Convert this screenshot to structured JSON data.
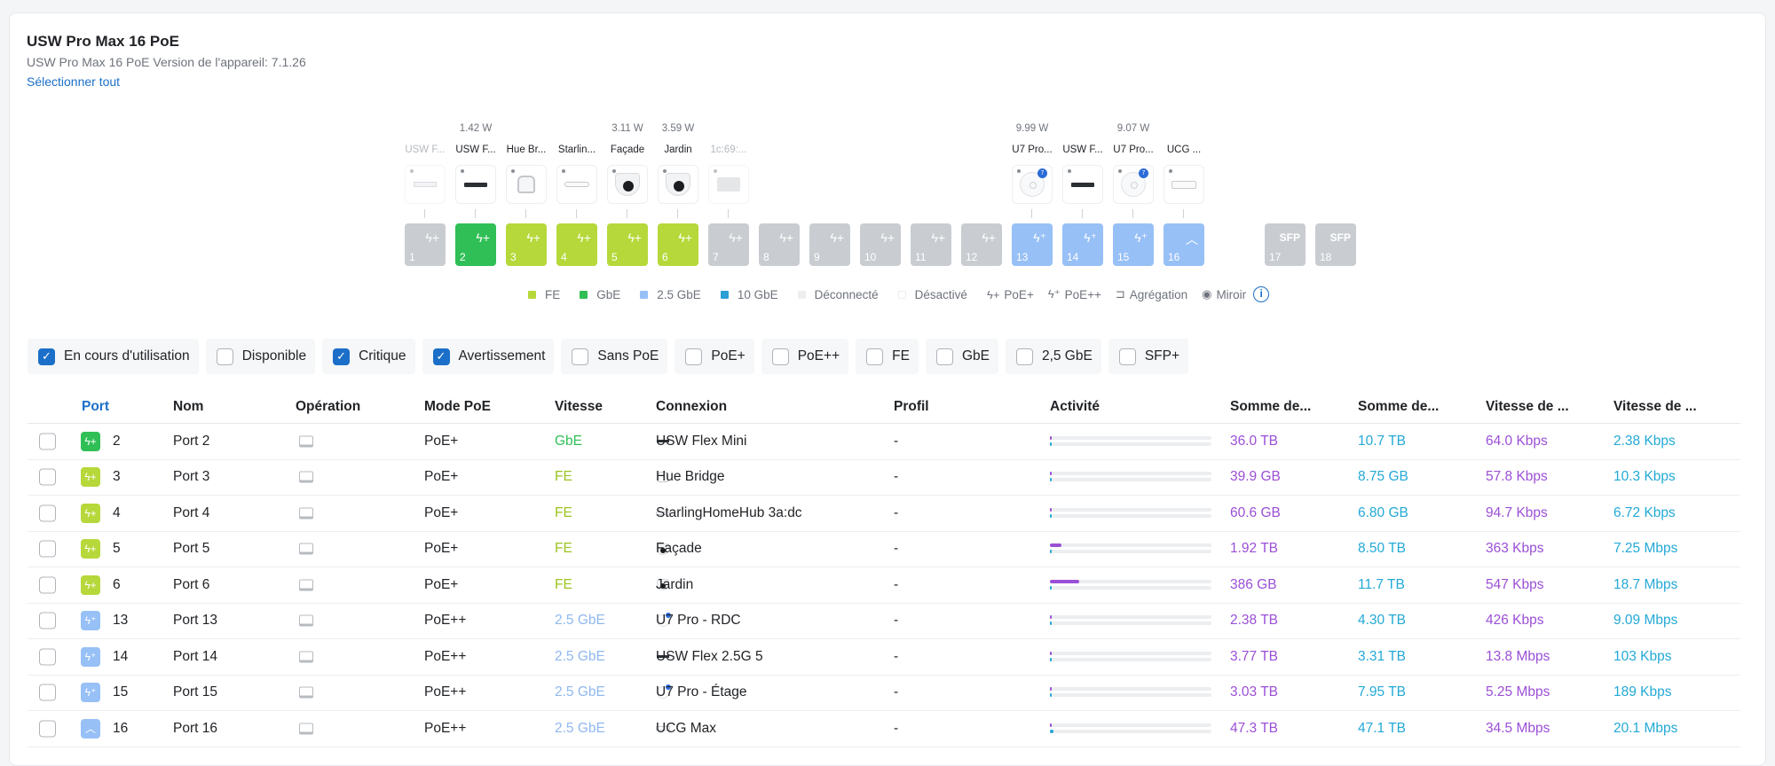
{
  "header": {
    "title": "USW Pro Max 16 PoE",
    "subtitle": "USW Pro Max 16 PoE   Version de l'appareil: 7.1.26",
    "select_all": "Sélectionner tout"
  },
  "diagram": {
    "ports": [
      {
        "num": "1",
        "watt": "",
        "client": "USW F...",
        "client_muted": true,
        "device": "switch-light",
        "speed": "off",
        "icon": "poe-plus-icon"
      },
      {
        "num": "2",
        "watt": "1.42 W",
        "client": "USW F...",
        "client_muted": false,
        "device": "switch-dark",
        "speed": "gbe",
        "icon": "poe-plus-icon"
      },
      {
        "num": "3",
        "watt": "",
        "client": "Hue Br...",
        "client_muted": false,
        "device": "hub",
        "speed": "fe",
        "icon": "poe-plus-icon"
      },
      {
        "num": "4",
        "watt": "",
        "client": "Starlin...",
        "client_muted": false,
        "device": "starling",
        "speed": "fe",
        "icon": "poe-plus-icon"
      },
      {
        "num": "5",
        "watt": "3.11 W",
        "client": "Façade",
        "client_muted": false,
        "device": "camera",
        "speed": "fe",
        "icon": "poe-plus-icon"
      },
      {
        "num": "6",
        "watt": "3.59 W",
        "client": "Jardin",
        "client_muted": false,
        "device": "camera",
        "speed": "fe",
        "icon": "poe-plus-icon"
      },
      {
        "num": "7",
        "watt": "",
        "client": "1c:69:...",
        "client_muted": true,
        "device": "grey-box",
        "speed": "off",
        "icon": "poe-plus-icon"
      },
      {
        "num": "8",
        "watt": "",
        "client": "",
        "client_muted": false,
        "device": "",
        "speed": "off",
        "icon": "poe-plus-icon"
      },
      {
        "num": "9",
        "watt": "",
        "client": "",
        "client_muted": false,
        "device": "",
        "speed": "off",
        "icon": "poe-plus-icon"
      },
      {
        "num": "10",
        "watt": "",
        "client": "",
        "client_muted": false,
        "device": "",
        "speed": "off",
        "icon": "poe-plus-icon"
      },
      {
        "num": "11",
        "watt": "",
        "client": "",
        "client_muted": false,
        "device": "",
        "speed": "off",
        "icon": "poe-plus-icon"
      },
      {
        "num": "12",
        "watt": "",
        "client": "",
        "client_muted": false,
        "device": "",
        "speed": "off",
        "icon": "poe-plus-icon"
      },
      {
        "num": "13",
        "watt": "9.99 W",
        "client": "U7 Pro...",
        "client_muted": false,
        "device": "ap",
        "speed": "25",
        "icon": "poe-plus-plus-icon"
      },
      {
        "num": "14",
        "watt": "",
        "client": "USW F...",
        "client_muted": false,
        "device": "switch-dark",
        "speed": "25",
        "icon": "poe-plus-plus-icon"
      },
      {
        "num": "15",
        "watt": "9.07 W",
        "client": "U7 Pro...",
        "client_muted": false,
        "device": "ap",
        "speed": "25",
        "icon": "poe-plus-plus-icon"
      },
      {
        "num": "16",
        "watt": "",
        "client": "UCG ...",
        "client_muted": false,
        "device": "ucg",
        "speed": "25",
        "icon": "uplink-icon"
      },
      {
        "num": "17",
        "watt": "",
        "client": "",
        "client_muted": false,
        "device": "",
        "speed": "off",
        "icon": "sfp",
        "sfp_label": "SFP"
      },
      {
        "num": "18",
        "watt": "",
        "client": "",
        "client_muted": false,
        "device": "",
        "speed": "off",
        "icon": "sfp",
        "sfp_label": "SFP"
      }
    ],
    "colors": {
      "fe": "#b6d83a",
      "gbe": "#2fbf56",
      "25": "#97c0f6",
      "10g": "#2b9ed6",
      "off": "#c9cdd1"
    }
  },
  "legend": {
    "fe": "FE",
    "gbe": "GbE",
    "g25": "2.5 GbE",
    "g10": "10 GbE",
    "disconnected": "Déconnecté",
    "disabled": "Désactivé",
    "poe_plus": "PoE+",
    "poe_plus_plus": "PoE++",
    "aggregation": "Agrégation",
    "mirror": "Miroir"
  },
  "filters": [
    {
      "label": "En cours d'utilisation",
      "checked": true
    },
    {
      "label": "Disponible",
      "checked": false
    },
    {
      "label": "Critique",
      "checked": true
    },
    {
      "label": "Avertissement",
      "checked": true
    },
    {
      "label": "Sans PoE",
      "checked": false
    },
    {
      "label": "PoE+",
      "checked": false
    },
    {
      "label": "PoE++",
      "checked": false
    },
    {
      "label": "FE",
      "checked": false
    },
    {
      "label": "GbE",
      "checked": false
    },
    {
      "label": "2,5 GbE",
      "checked": false
    },
    {
      "label": "SFP+",
      "checked": false
    }
  ],
  "table": {
    "headers": {
      "port": "Port",
      "name": "Nom",
      "operation": "Opération",
      "poe_mode": "Mode PoE",
      "speed": "Vitesse",
      "connection": "Connexion",
      "profile": "Profil",
      "activity": "Activité",
      "sum1": "Somme de...",
      "sum2": "Somme de...",
      "speed1": "Vitesse de ...",
      "speed2": "Vitesse de ..."
    },
    "rows": [
      {
        "port": "2",
        "speed_class": "gbe",
        "name": "Port 2",
        "poe": "PoE+",
        "speed": "GbE",
        "device": "switch-dark",
        "connection": "USW Flex Mini",
        "profile": "-",
        "act_tx": 0.01,
        "act_rx": 0.01,
        "sum1": "36.0 TB",
        "sum2": "10.7 TB",
        "rate1": "64.0 Kbps",
        "rate2": "2.38 Kbps"
      },
      {
        "port": "3",
        "speed_class": "fe",
        "name": "Port 3",
        "poe": "PoE+",
        "speed": "FE",
        "device": "hub",
        "connection": "Hue Bridge",
        "profile": "-",
        "act_tx": 0.01,
        "act_rx": 0.01,
        "sum1": "39.9 GB",
        "sum2": "8.75 GB",
        "rate1": "57.8 Kbps",
        "rate2": "10.3 Kbps"
      },
      {
        "port": "4",
        "speed_class": "fe",
        "name": "Port 4",
        "poe": "PoE+",
        "speed": "FE",
        "device": "starling",
        "connection": "StarlingHomeHub 3a:dc",
        "profile": "-",
        "act_tx": 0.01,
        "act_rx": 0.01,
        "sum1": "60.6 GB",
        "sum2": "6.80 GB",
        "rate1": "94.7 Kbps",
        "rate2": "6.72 Kbps"
      },
      {
        "port": "5",
        "speed_class": "fe",
        "name": "Port 5",
        "poe": "PoE+",
        "speed": "FE",
        "device": "camera",
        "connection": "Façade",
        "profile": "-",
        "act_tx": 0.07,
        "act_rx": 0.01,
        "sum1": "1.92 TB",
        "sum2": "8.50 TB",
        "rate1": "363 Kbps",
        "rate2": "7.25 Mbps"
      },
      {
        "port": "6",
        "speed_class": "fe",
        "name": "Port 6",
        "poe": "PoE+",
        "speed": "FE",
        "device": "camera",
        "connection": "Jardin",
        "profile": "-",
        "act_tx": 0.18,
        "act_rx": 0.01,
        "sum1": "386 GB",
        "sum2": "11.7 TB",
        "rate1": "547 Kbps",
        "rate2": "18.7 Mbps"
      },
      {
        "port": "13",
        "speed_class": "25",
        "name": "Port 13",
        "poe": "PoE++",
        "speed": "2.5 GbE",
        "device": "ap",
        "connection": "U7 Pro - RDC",
        "profile": "-",
        "act_tx": 0.01,
        "act_rx": 0.01,
        "sum1": "2.38 TB",
        "sum2": "4.30 TB",
        "rate1": "426 Kbps",
        "rate2": "9.09 Mbps"
      },
      {
        "port": "14",
        "speed_class": "25",
        "name": "Port 14",
        "poe": "PoE++",
        "speed": "2.5 GbE",
        "device": "switch-dark",
        "connection": "USW Flex 2.5G 5",
        "profile": "-",
        "act_tx": 0.01,
        "act_rx": 0.01,
        "sum1": "3.77 TB",
        "sum2": "3.31 TB",
        "rate1": "13.8 Mbps",
        "rate2": "103 Kbps"
      },
      {
        "port": "15",
        "speed_class": "25",
        "name": "Port 15",
        "poe": "PoE++",
        "speed": "2.5 GbE",
        "device": "ap",
        "connection": "U7 Pro - Étage",
        "profile": "-",
        "act_tx": 0.01,
        "act_rx": 0.01,
        "sum1": "3.03 TB",
        "sum2": "7.95 TB",
        "rate1": "5.25 Mbps",
        "rate2": "189 Kbps"
      },
      {
        "port": "16",
        "speed_class": "25",
        "name": "Port 16",
        "poe": "PoE++",
        "speed": "2.5 GbE",
        "device": "ucg",
        "connection": "UCG Max",
        "profile": "-",
        "act_tx": 0.01,
        "act_rx": 0.02,
        "sum1": "47.3 TB",
        "sum2": "47.1 TB",
        "rate1": "34.5 Mbps",
        "rate2": "20.1 Mbps"
      }
    ]
  }
}
